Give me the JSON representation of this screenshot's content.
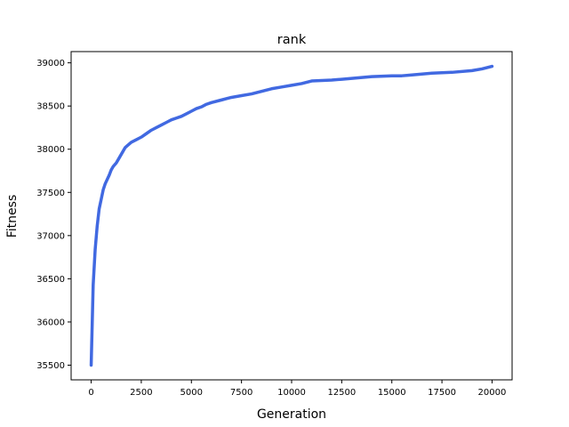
{
  "chart_data": {
    "type": "line",
    "title": "rank",
    "xlabel": "Generation",
    "ylabel": "Fitness",
    "xlim": [
      -1000,
      21000
    ],
    "ylim": [
      35330,
      39130
    ],
    "xticks": [
      0,
      2500,
      5000,
      7500,
      10000,
      12500,
      15000,
      17500,
      20000
    ],
    "yticks": [
      35500,
      36000,
      36500,
      37000,
      37500,
      38000,
      38500,
      39000
    ],
    "grid": false,
    "colors": {
      "line": "#4169e1",
      "axes": "#000000",
      "background": "#ffffff"
    },
    "series": [
      {
        "x": [
          0,
          50,
          100,
          200,
          300,
          400,
          500,
          600,
          700,
          800,
          900,
          1000,
          1100,
          1250,
          1400,
          1500,
          1700,
          1800,
          2000,
          2250,
          2500,
          2750,
          3000,
          3250,
          3500,
          3750,
          4000,
          4250,
          4500,
          4750,
          5000,
          5250,
          5500,
          5750,
          6000,
          6500,
          7000,
          7500,
          8000,
          8500,
          9000,
          9500,
          10000,
          10500,
          11000,
          12000,
          12500,
          13000,
          14000,
          15000,
          15500,
          16000,
          17000,
          18000,
          19000,
          19500,
          20000
        ],
        "values": [
          35500,
          35960,
          36430,
          36840,
          37110,
          37310,
          37420,
          37530,
          37600,
          37650,
          37700,
          37760,
          37800,
          37840,
          37900,
          37940,
          38020,
          38040,
          38080,
          38110,
          38140,
          38180,
          38220,
          38250,
          38280,
          38310,
          38340,
          38360,
          38380,
          38410,
          38440,
          38470,
          38490,
          38520,
          38540,
          38570,
          38600,
          38620,
          38640,
          38670,
          38700,
          38720,
          38740,
          38760,
          38790,
          38800,
          38810,
          38820,
          38840,
          38850,
          38850,
          38860,
          38880,
          38890,
          38910,
          38930,
          38960
        ]
      }
    ]
  }
}
